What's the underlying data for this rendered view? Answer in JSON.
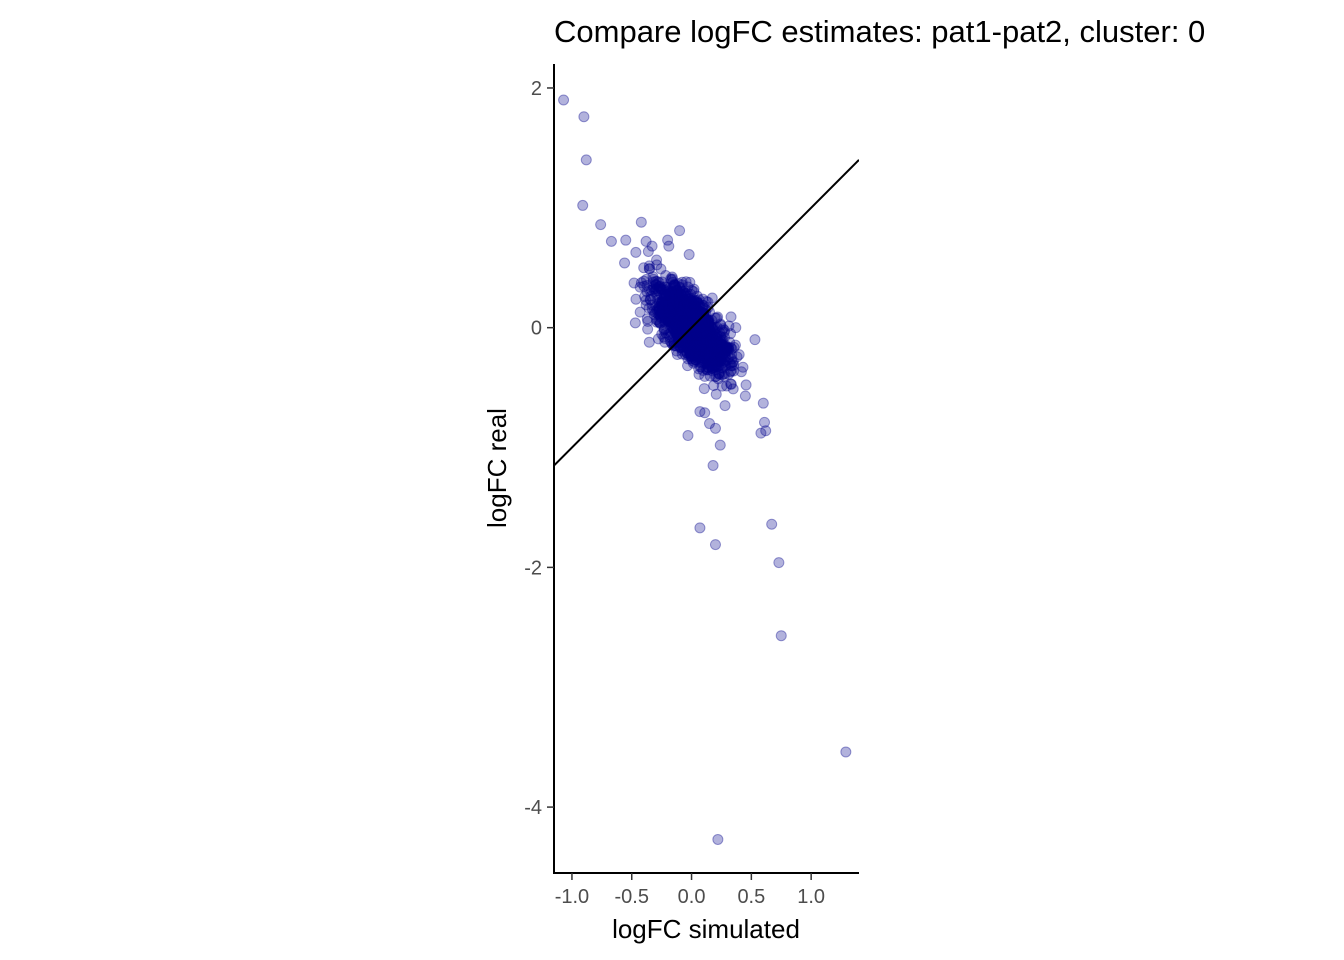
{
  "chart_data": {
    "type": "scatter",
    "title": "Compare logFC estimates: pat1-pat2, cluster: 0",
    "xlabel": "logFC simulated",
    "ylabel": "logFC real",
    "xlim": [
      -1.15,
      1.4
    ],
    "ylim": [
      -4.55,
      2.2
    ],
    "x_ticks": [
      -1.0,
      -0.5,
      0.0,
      0.5,
      1.0
    ],
    "x_tick_labels": [
      "-1.0",
      "-0.5",
      "0.0",
      "0.5",
      "1.0"
    ],
    "y_ticks": [
      2,
      0,
      -2,
      -4
    ],
    "y_tick_labels": [
      "2",
      "0",
      "-2",
      "-4"
    ],
    "grid": false,
    "legend": "none",
    "point_color": "#00008b",
    "point_alpha": 0.3,
    "reference_line": {
      "type": "identity",
      "intercept": 0,
      "slope": 1,
      "color": "#000000"
    },
    "points": [
      {
        "x": -1.07,
        "y": 1.9
      },
      {
        "x": -0.9,
        "y": 1.76
      },
      {
        "x": -0.88,
        "y": 1.4
      },
      {
        "x": -0.91,
        "y": 1.02
      },
      {
        "x": -0.76,
        "y": 0.86
      },
      {
        "x": -0.67,
        "y": 0.72
      },
      {
        "x": -0.55,
        "y": 0.73
      },
      {
        "x": -0.42,
        "y": 0.88
      },
      {
        "x": -0.38,
        "y": 0.72
      },
      {
        "x": -0.33,
        "y": 0.68
      },
      {
        "x": -0.2,
        "y": 0.73
      },
      {
        "x": -0.1,
        "y": 0.81
      },
      {
        "x": -0.19,
        "y": 0.68
      },
      {
        "x": -0.02,
        "y": 0.61
      },
      {
        "x": -0.56,
        "y": 0.54
      },
      {
        "x": -0.47,
        "y": 0.04
      },
      {
        "x": -0.43,
        "y": 0.13
      },
      {
        "x": -0.38,
        "y": 0.19
      },
      {
        "x": -0.4,
        "y": 0.5
      },
      {
        "x": 0.33,
        "y": 0.09
      },
      {
        "x": 0.37,
        "y": 0.0
      },
      {
        "x": 0.53,
        "y": -0.1
      },
      {
        "x": 0.43,
        "y": -0.33
      },
      {
        "x": 0.45,
        "y": -0.57
      },
      {
        "x": 0.6,
        "y": -0.63
      },
      {
        "x": 0.61,
        "y": -0.79
      },
      {
        "x": 0.58,
        "y": -0.88
      },
      {
        "x": 0.62,
        "y": -0.86
      },
      {
        "x": 0.24,
        "y": -0.98
      },
      {
        "x": -0.03,
        "y": -0.9
      },
      {
        "x": 0.15,
        "y": -0.8
      },
      {
        "x": 0.2,
        "y": -0.84
      },
      {
        "x": 0.18,
        "y": -1.15
      },
      {
        "x": 0.07,
        "y": -0.7
      },
      {
        "x": 0.11,
        "y": -0.71
      },
      {
        "x": 0.28,
        "y": -0.65
      },
      {
        "x": 0.07,
        "y": -1.67
      },
      {
        "x": 0.2,
        "y": -1.81
      },
      {
        "x": 0.67,
        "y": -1.64
      },
      {
        "x": 0.73,
        "y": -1.96
      },
      {
        "x": 0.75,
        "y": -2.57
      },
      {
        "x": 1.29,
        "y": -3.54
      },
      {
        "x": 0.22,
        "y": -4.27
      }
    ],
    "cluster": {
      "center": [
        0.0,
        0.0
      ],
      "count": 1500,
      "slope": -1.3,
      "spread_along": 0.13,
      "spread_across": 0.16
    }
  }
}
